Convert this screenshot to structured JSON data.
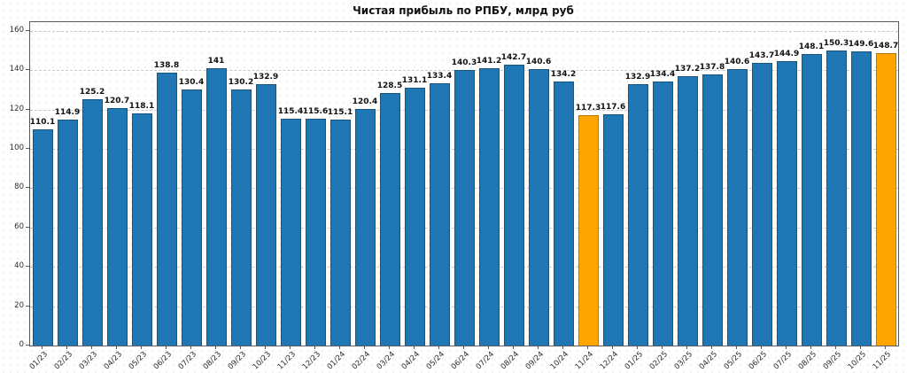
{
  "chart_data": {
    "type": "bar",
    "title": "Чистая прибыль по РПБУ, млрд руб",
    "xlabel": "",
    "ylabel": "",
    "categories": [
      "01/23",
      "02/23",
      "03/23",
      "04/23",
      "05/23",
      "06/23",
      "07/23",
      "08/23",
      "09/23",
      "10/23",
      "11/23",
      "12/23",
      "01/24",
      "02/24",
      "03/24",
      "04/24",
      "05/24",
      "06/24",
      "07/24",
      "08/24",
      "09/24",
      "10/24",
      "11/24",
      "12/24",
      "01/25",
      "02/25",
      "03/25",
      "04/25",
      "05/25",
      "06/25",
      "07/25",
      "08/25",
      "09/25",
      "10/25",
      "11/25"
    ],
    "values": [
      110.1,
      114.9,
      125.2,
      120.7,
      118.1,
      138.8,
      130.4,
      141,
      130.2,
      132.9,
      115.4,
      115.6,
      115.1,
      120.4,
      128.5,
      131.1,
      133.4,
      140.3,
      141.2,
      142.7,
      140.6,
      134.2,
      117.3,
      117.6,
      132.9,
      134.4,
      137.2,
      137.8,
      140.6,
      143.7,
      144.9,
      148.1,
      150.3,
      149.6,
      148.7
    ],
    "highlight_indices": [
      22,
      34
    ],
    "highlight_categories": [
      "11/24",
      "11/25"
    ],
    "bar_color": "#1f77b4",
    "highlight_color": "#ffa500",
    "yticks": [
      0,
      20,
      40,
      60,
      80,
      100,
      120,
      140,
      160
    ],
    "ylim": [
      0,
      164.5
    ],
    "grid": "dashed-horizontal",
    "legend": "none",
    "value_labels": "bold, above each bar",
    "xtick_rotation": 45
  }
}
